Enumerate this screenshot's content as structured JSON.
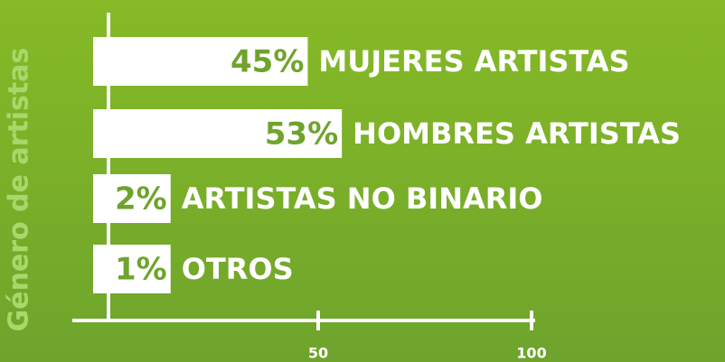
{
  "chart_data": {
    "type": "bar",
    "orientation": "horizontal",
    "y_axis_label": "Género de artistas",
    "categories": [
      "MUJERES ARTISTAS",
      "HOMBRES ARTISTAS",
      "ARTISTAS NO BINARIO",
      "OTROS"
    ],
    "values": [
      45,
      53,
      2,
      1
    ],
    "value_labels": [
      "45%",
      "53%",
      "2%",
      "1%"
    ],
    "color": "#ffffff",
    "xlim": [
      0,
      100
    ],
    "xticks": [
      50,
      100
    ]
  }
}
